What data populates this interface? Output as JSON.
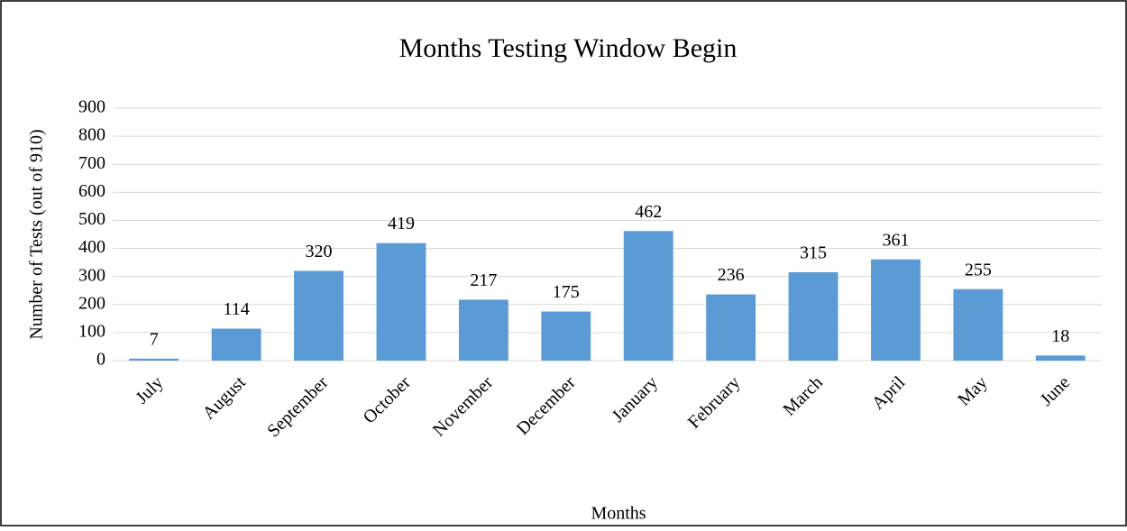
{
  "chart_data": {
    "type": "bar",
    "title": "Months Testing Window Begin",
    "x_label": "Months",
    "y_label": "Number of Tests (out of 910)",
    "categories": [
      "July",
      "August",
      "September",
      "October",
      "November",
      "December",
      "January",
      "February",
      "March",
      "April",
      "May",
      "June"
    ],
    "values": [
      7,
      114,
      320,
      419,
      217,
      175,
      462,
      236,
      315,
      361,
      255,
      18
    ],
    "color": "#5b9bd5",
    "ylim": [
      0,
      900
    ],
    "yticks": [
      0,
      100,
      200,
      300,
      400,
      500,
      600,
      700,
      800,
      900
    ],
    "grid": true
  }
}
